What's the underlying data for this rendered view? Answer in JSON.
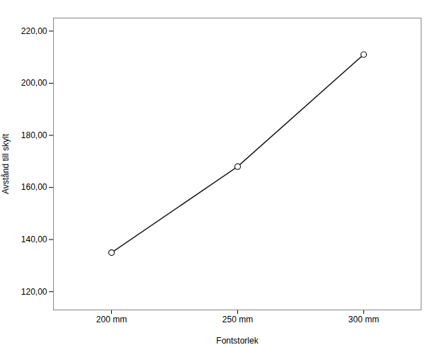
{
  "chart_data": {
    "type": "line",
    "categories": [
      "200 mm",
      "250 mm",
      "300 mm"
    ],
    "values": [
      135.0,
      168.0,
      211.0
    ],
    "xlabel": "Fontstorlek",
    "ylabel": "Avstånd till skylt",
    "ylim": [
      113,
      225
    ],
    "yticks": [
      {
        "value": 120.0,
        "label": "120,00"
      },
      {
        "value": 140.0,
        "label": "140,00"
      },
      {
        "value": 160.0,
        "label": "160,00"
      },
      {
        "value": 180.0,
        "label": "180,00"
      },
      {
        "value": 200.0,
        "label": "200,00"
      },
      {
        "value": 220.0,
        "label": "220,00"
      }
    ],
    "color": "#1a1a1a",
    "marker": "circle",
    "grid": false
  }
}
